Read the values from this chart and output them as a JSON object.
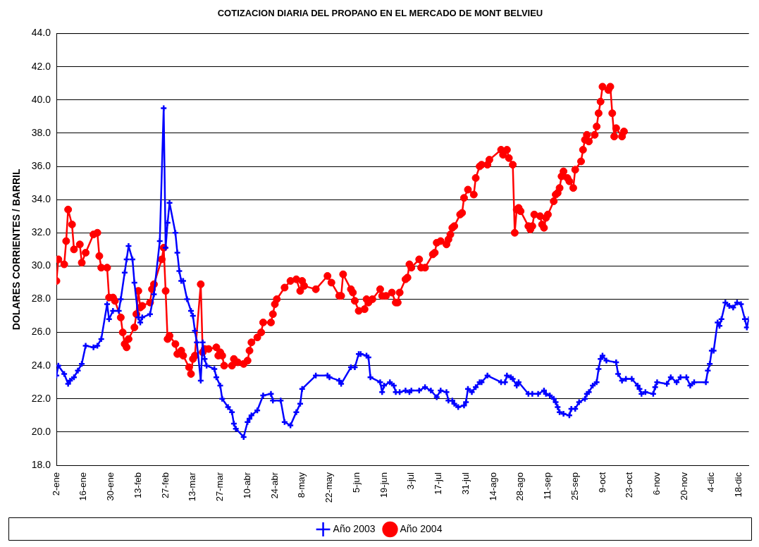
{
  "chart_data": {
    "type": "line",
    "title": "COTIZACION DIARIA DEL PROPANO EN EL MERCADO DE MONT BELVIEU",
    "ylabel": "DOLARES CORRIENTES / BARRIL",
    "xlim": [
      "--01-02",
      "--12-23"
    ],
    "xticks": [
      {
        "value": "--01-02",
        "label": "2-ene"
      },
      {
        "value": "--01-16",
        "label": "16-ene"
      },
      {
        "value": "--01-30",
        "label": "30-ene"
      },
      {
        "value": "--02-13",
        "label": "13-feb"
      },
      {
        "value": "--02-27",
        "label": "27-feb"
      },
      {
        "value": "--03-13",
        "label": "13-mar"
      },
      {
        "value": "--03-27",
        "label": "27-mar"
      },
      {
        "value": "--04-10",
        "label": "10-abr"
      },
      {
        "value": "--04-24",
        "label": "24-abr"
      },
      {
        "value": "--05-08",
        "label": "8-may"
      },
      {
        "value": "--05-22",
        "label": "22-may"
      },
      {
        "value": "--06-05",
        "label": "5-jun"
      },
      {
        "value": "--06-19",
        "label": "19-jun"
      },
      {
        "value": "--07-03",
        "label": "3-jul"
      },
      {
        "value": "--07-17",
        "label": "17-jul"
      },
      {
        "value": "--07-31",
        "label": "31-jul"
      },
      {
        "value": "--08-14",
        "label": "14-ago"
      },
      {
        "value": "--08-28",
        "label": "28-ago"
      },
      {
        "value": "--09-11",
        "label": "11-sep"
      },
      {
        "value": "--09-25",
        "label": "25-sep"
      },
      {
        "value": "--10-09",
        "label": "9-oct"
      },
      {
        "value": "--10-23",
        "label": "23-oct"
      },
      {
        "value": "--11-06",
        "label": "6-nov"
      },
      {
        "value": "--11-20",
        "label": "20-nov"
      },
      {
        "value": "--12-04",
        "label": "4-dic"
      },
      {
        "value": "--12-18",
        "label": "18-dic"
      }
    ],
    "ylim": [
      18,
      44
    ],
    "yticks": [
      {
        "value": 18,
        "label": "18.0"
      },
      {
        "value": 20,
        "label": "20.0"
      },
      {
        "value": 22,
        "label": "22.0"
      },
      {
        "value": 24,
        "label": "24.0"
      },
      {
        "value": 26,
        "label": "26.0"
      },
      {
        "value": 28,
        "label": "28.0"
      },
      {
        "value": 30,
        "label": "30.0"
      },
      {
        "value": 32,
        "label": "32.0"
      },
      {
        "value": 34,
        "label": "34.0"
      },
      {
        "value": 36,
        "label": "36.0"
      },
      {
        "value": 38,
        "label": "38.0"
      },
      {
        "value": 40,
        "label": "40.0"
      },
      {
        "value": 42,
        "label": "42.0"
      },
      {
        "value": 44,
        "label": "44.0"
      }
    ],
    "grid": "y",
    "legend": "bottom",
    "line_style": "solid",
    "series": [
      {
        "name": "Año 2003",
        "color": "#0000ff",
        "marker": "cross",
        "x": [
          "--01-02",
          "--01-03",
          "--01-06",
          "--01-08",
          "--01-09",
          "--01-11",
          "--01-13",
          "--01-15",
          "--01-17",
          "--01-21",
          "--01-23",
          "--01-25",
          "--01-28",
          "--01-29",
          "--01-31",
          "--02-03",
          "--02-04",
          "--02-06",
          "--02-07",
          "--02-08",
          "--02-10",
          "--02-11",
          "--02-13",
          "--02-14",
          "--02-15",
          "--02-19",
          "--02-21",
          "--02-24",
          "--02-26",
          "--02-27",
          "--02-28",
          "--03-01",
          "--03-04",
          "--03-05",
          "--03-06",
          "--03-07",
          "--03-08",
          "--03-10",
          "--03-12",
          "--03-13",
          "--03-14",
          "--03-15",
          "--03-17",
          "--03-18",
          "--03-19",
          "--03-20",
          "--03-24",
          "--03-25",
          "--03-27",
          "--03-28",
          "--03-31",
          "--04-02",
          "--04-03",
          "--04-04",
          "--04-08",
          "--04-10",
          "--04-11",
          "--04-12",
          "--04-15",
          "--04-18",
          "--04-22",
          "--04-23",
          "--04-27",
          "--04-29",
          "--05-02",
          "--05-05",
          "--05-07",
          "--05-08",
          "--05-15",
          "--05-21",
          "--05-22",
          "--05-27",
          "--05-28",
          "--06-02",
          "--06-04",
          "--06-06",
          "--06-07",
          "--06-10",
          "--06-11",
          "--06-12",
          "--06-17",
          "--06-18",
          "--06-19",
          "--06-22",
          "--06-24",
          "--06-25",
          "--06-27",
          "--06-30",
          "--07-02",
          "--07-03",
          "--07-07",
          "--07-10",
          "--07-13",
          "--07-16",
          "--07-18",
          "--07-21",
          "--07-22",
          "--07-24",
          "--07-25",
          "--07-27",
          "--07-30",
          "--07-31",
          "--08-01",
          "--08-03",
          "--08-05",
          "--08-07",
          "--08-08",
          "--08-11",
          "--08-18",
          "--08-20",
          "--08-21",
          "--08-23",
          "--08-24",
          "--08-26",
          "--08-27",
          "--09-01",
          "--09-03",
          "--09-06",
          "--09-09",
          "--09-10",
          "--09-12",
          "--09-14",
          "--09-15",
          "--09-16",
          "--09-17",
          "--09-19",
          "--09-22",
          "--09-23",
          "--09-25",
          "--09-27",
          "--09-30",
          "--10-01",
          "--10-02",
          "--10-04",
          "--10-06",
          "--10-07",
          "--10-08",
          "--10-09",
          "--10-11",
          "--10-16",
          "--10-17",
          "--10-19",
          "--10-21",
          "--10-24",
          "--10-27",
          "--10-28",
          "--10-29",
          "--10-31",
          "--11-04",
          "--11-05",
          "--11-06",
          "--11-11",
          "--11-13",
          "--11-16",
          "--11-18",
          "--11-21",
          "--11-23",
          "--11-25",
          "--12-01",
          "--12-02",
          "--12-03",
          "--12-04",
          "--12-05",
          "--12-07",
          "--12-08",
          "--12-09",
          "--12-11",
          "--12-13",
          "--12-15",
          "--12-17",
          "--12-19",
          "--12-21",
          "--12-22",
          "--12-23"
        ],
        "values": [
          23.4,
          24.0,
          23.5,
          22.9,
          23.1,
          23.3,
          23.7,
          24.1,
          25.2,
          25.1,
          25.2,
          25.6,
          27.7,
          26.8,
          27.3,
          27.3,
          28.0,
          29.6,
          30.4,
          31.2,
          30.4,
          29.0,
          26.9,
          26.6,
          26.9,
          27.1,
          28.3,
          31.5,
          39.5,
          31.1,
          32.6,
          33.8,
          32.0,
          30.8,
          29.7,
          29.1,
          29.1,
          28.0,
          27.3,
          27.0,
          26.1,
          25.4,
          23.1,
          25.4,
          24.4,
          24.0,
          23.8,
          23.3,
          22.8,
          22.0,
          21.5,
          21.2,
          20.5,
          20.2,
          19.7,
          20.6,
          20.8,
          21.0,
          21.3,
          22.2,
          22.3,
          21.9,
          21.9,
          20.6,
          20.4,
          21.2,
          21.7,
          22.6,
          23.4,
          23.4,
          23.3,
          23.1,
          22.9,
          23.9,
          23.9,
          24.7,
          24.7,
          24.6,
          24.5,
          23.3,
          23.0,
          22.4,
          22.8,
          23.0,
          22.8,
          22.4,
          22.4,
          22.5,
          22.4,
          22.5,
          22.5,
          22.7,
          22.5,
          22.1,
          22.5,
          22.4,
          21.9,
          21.9,
          21.7,
          21.5,
          21.6,
          21.8,
          22.6,
          22.4,
          22.7,
          23.0,
          23.0,
          23.4,
          23.0,
          23.0,
          23.4,
          23.3,
          23.2,
          22.8,
          23.0,
          22.3,
          22.3,
          22.3,
          22.5,
          22.3,
          22.2,
          22.0,
          21.8,
          21.5,
          21.2,
          21.1,
          21.0,
          21.4,
          21.4,
          21.8,
          22.0,
          22.3,
          22.4,
          22.8,
          23.0,
          23.8,
          24.4,
          24.6,
          24.3,
          24.2,
          23.5,
          23.1,
          23.2,
          23.2,
          22.8,
          22.6,
          22.3,
          22.4,
          22.3,
          22.7,
          23.0,
          22.9,
          23.3,
          23.0,
          23.3,
          23.3,
          22.8,
          23.0,
          23.0,
          23.7,
          24.1,
          24.9,
          24.9,
          26.6,
          26.4,
          26.8,
          27.8,
          27.6,
          27.5,
          27.8,
          27.7,
          26.8,
          26.3,
          26.8
        ]
      },
      {
        "name": "Año 2004",
        "color": "#ff0000",
        "marker": "circle",
        "x": [
          "--01-02",
          "--01-03",
          "--01-06",
          "--01-07",
          "--01-08",
          "--01-10",
          "--01-11",
          "--01-14",
          "--01-15",
          "--01-17",
          "--01-21",
          "--01-23",
          "--01-24",
          "--01-25",
          "--01-28",
          "--01-29",
          "--01-31",
          "--02-01",
          "--02-04",
          "--02-05",
          "--02-06",
          "--02-07",
          "--02-08",
          "--02-11",
          "--02-12",
          "--02-13",
          "--02-14",
          "--02-15",
          "--02-19",
          "--02-20",
          "--02-21",
          "--02-25",
          "--02-26",
          "--02-27",
          "--02-28",
          "--03-01",
          "--03-04",
          "--03-05",
          "--03-07",
          "--03-08",
          "--03-11",
          "--03-12",
          "--03-13",
          "--03-14",
          "--03-17",
          "--03-18",
          "--03-19",
          "--03-21",
          "--03-25",
          "--03-26",
          "--03-27",
          "--03-28",
          "--03-29",
          "--04-02",
          "--04-03",
          "--04-05",
          "--04-08",
          "--04-10",
          "--04-11",
          "--04-12",
          "--04-15",
          "--04-17",
          "--04-18",
          "--04-22",
          "--04-23",
          "--04-24",
          "--04-25",
          "--04-29",
          "--05-02",
          "--05-05",
          "--05-07",
          "--05-08",
          "--05-09",
          "--05-15",
          "--05-21",
          "--05-23",
          "--05-27",
          "--05-28",
          "--05-29",
          "--06-02",
          "--06-03",
          "--06-04",
          "--06-06",
          "--06-09",
          "--06-10",
          "--06-11",
          "--06-13",
          "--06-17",
          "--06-18",
          "--06-20",
          "--06-23",
          "--06-25",
          "--06-26",
          "--06-27",
          "--06-30",
          "--07-01",
          "--07-02",
          "--07-03",
          "--07-07",
          "--07-08",
          "--07-10",
          "--07-14",
          "--07-15",
          "--07-16",
          "--07-18",
          "--07-21",
          "--07-22",
          "--07-23",
          "--07-24",
          "--07-25",
          "--07-28",
          "--07-29",
          "--07-30",
          "--08-01",
          "--08-04",
          "--08-05",
          "--08-07",
          "--08-08",
          "--08-11",
          "--08-12",
          "--08-18",
          "--08-19",
          "--08-21",
          "--08-22",
          "--08-24",
          "--08-25",
          "--08-26",
          "--08-27",
          "--08-28",
          "--09-01",
          "--09-02",
          "--09-03",
          "--09-04",
          "--09-07",
          "--09-08",
          "--09-09",
          "--09-10",
          "--09-11",
          "--09-14",
          "--09-15",
          "--09-16",
          "--09-17",
          "--09-18",
          "--09-19",
          "--09-21",
          "--09-22",
          "--09-24",
          "--09-25",
          "--09-28",
          "--09-29",
          "--09-30",
          "--10-01",
          "--10-02",
          "--10-05",
          "--10-06",
          "--10-07",
          "--10-08",
          "--10-09",
          "--10-12",
          "--10-13",
          "--10-14",
          "--10-15",
          "--10-16",
          "--10-19",
          "--10-20"
        ],
        "values": [
          29.1,
          30.4,
          30.1,
          31.5,
          33.4,
          32.5,
          31.0,
          31.3,
          30.2,
          30.8,
          31.9,
          32.0,
          30.6,
          29.9,
          29.9,
          28.1,
          28.1,
          27.9,
          26.9,
          26.0,
          25.3,
          25.1,
          25.6,
          26.3,
          27.1,
          28.5,
          27.5,
          27.6,
          27.8,
          28.6,
          28.9,
          30.4,
          31.1,
          28.5,
          25.6,
          25.8,
          25.3,
          24.7,
          24.9,
          24.6,
          23.9,
          23.5,
          24.4,
          24.6,
          28.9,
          24.8,
          25.0,
          25.0,
          25.1,
          24.6,
          24.8,
          24.6,
          24.0,
          24.0,
          24.4,
          24.2,
          24.1,
          24.3,
          24.9,
          25.4,
          25.7,
          26.0,
          26.6,
          26.6,
          27.1,
          27.7,
          28.0,
          28.7,
          29.1,
          29.2,
          28.5,
          29.1,
          28.8,
          28.6,
          29.4,
          29.0,
          28.2,
          28.2,
          29.5,
          28.6,
          28.4,
          27.9,
          27.3,
          27.4,
          28.0,
          27.8,
          28.0,
          28.6,
          28.2,
          28.2,
          28.4,
          27.8,
          27.8,
          28.4,
          29.2,
          29.3,
          30.1,
          29.9,
          30.4,
          29.9,
          29.9,
          30.7,
          30.8,
          31.4,
          31.5,
          31.3,
          31.6,
          31.9,
          32.3,
          32.4,
          33.1,
          33.2,
          34.1,
          34.6,
          34.3,
          35.3,
          36.0,
          36.1,
          36.1,
          36.4,
          37.0,
          36.7,
          37.0,
          36.5,
          36.1,
          32.0,
          33.4,
          33.5,
          33.3,
          32.4,
          32.2,
          32.4,
          33.1,
          33.0,
          32.5,
          32.3,
          32.9,
          33.1,
          33.9,
          34.3,
          34.4,
          34.7,
          35.4,
          35.7,
          35.3,
          35.1,
          34.7,
          35.8,
          36.3,
          37.0,
          37.6,
          37.9,
          37.5,
          37.9,
          38.4,
          39.2,
          39.9,
          40.8,
          40.6,
          40.8,
          39.2,
          37.8,
          38.3,
          37.8,
          38.1
        ]
      }
    ]
  }
}
